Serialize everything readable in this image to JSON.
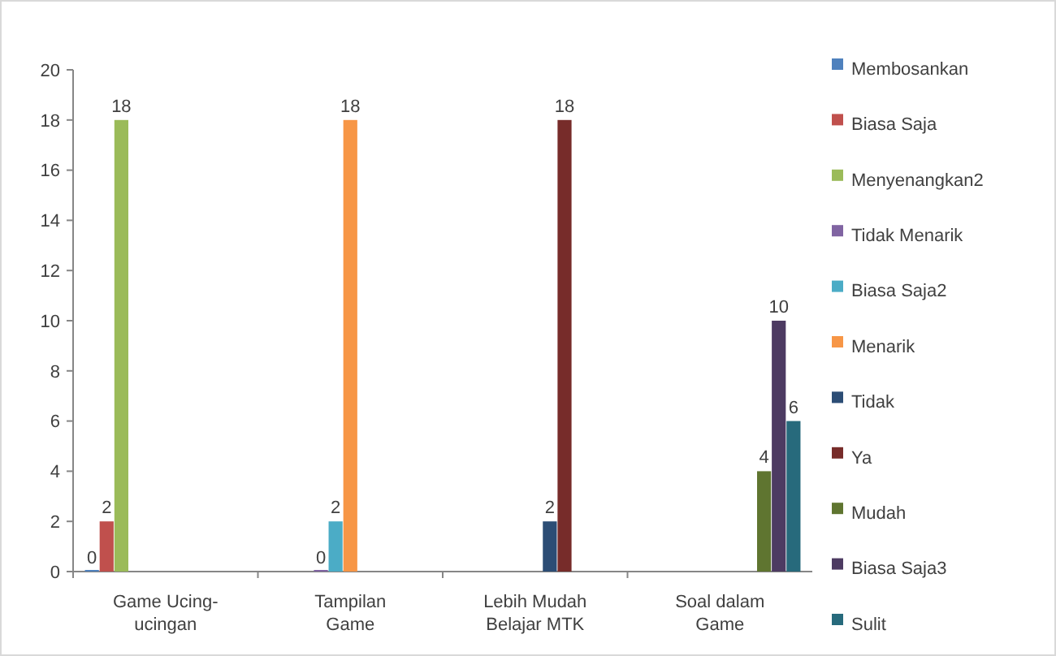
{
  "chart_data": {
    "type": "bar",
    "categories": [
      "Game Ucing-ucingan",
      "Tampilan Game",
      "Lebih Mudah Belajar MTK",
      "Soal dalam Game"
    ],
    "series": [
      {
        "name": "Membosankan",
        "color": "#4f81bd",
        "values": [
          0,
          null,
          null,
          null
        ]
      },
      {
        "name": "Biasa Saja",
        "color": "#c0504d",
        "values": [
          2,
          null,
          null,
          null
        ]
      },
      {
        "name": "Menyenangkan2",
        "color": "#9bbb59",
        "values": [
          18,
          null,
          null,
          null
        ]
      },
      {
        "name": "Tidak Menarik",
        "color": "#8064a2",
        "values": [
          null,
          0,
          null,
          null
        ]
      },
      {
        "name": "Biasa Saja2",
        "color": "#4bacc6",
        "values": [
          null,
          2,
          null,
          null
        ]
      },
      {
        "name": "Menarik",
        "color": "#f79646",
        "values": [
          null,
          18,
          null,
          null
        ]
      },
      {
        "name": "Tidak",
        "color": "#2c4d75",
        "values": [
          null,
          null,
          2,
          null
        ]
      },
      {
        "name": "Ya",
        "color": "#772c2a",
        "values": [
          null,
          null,
          18,
          null
        ]
      },
      {
        "name": "Mudah",
        "color": "#5f7530",
        "values": [
          null,
          null,
          null,
          4
        ]
      },
      {
        "name": "Biasa Saja3",
        "color": "#4d3b62",
        "values": [
          null,
          null,
          null,
          10
        ]
      },
      {
        "name": "Sulit",
        "color": "#276a7c",
        "values": [
          null,
          null,
          null,
          6
        ]
      }
    ],
    "ylim": [
      0,
      20
    ],
    "yticks": [
      0,
      2,
      4,
      6,
      8,
      10,
      12,
      14,
      16,
      18,
      20
    ],
    "grid": false,
    "legend": "right",
    "data_labels": true
  }
}
